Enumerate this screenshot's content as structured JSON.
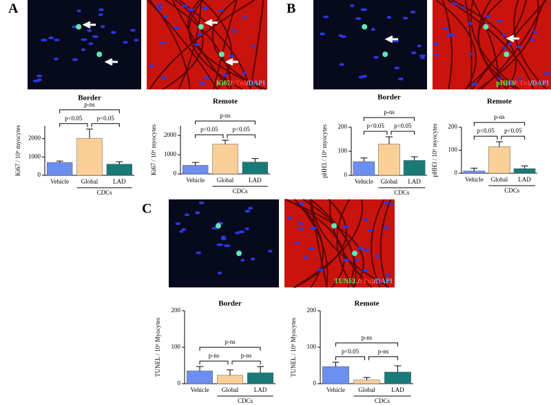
{
  "panel_labels": [
    "A",
    "B",
    "C"
  ],
  "image_labels": [
    [
      "Ki67",
      "/",
      "cTnI",
      "/",
      "DAPI"
    ],
    [
      "pHH3",
      "/",
      "cTnI",
      "/",
      "DAPI"
    ],
    [
      "TUNEL",
      "/",
      "cTnI",
      "/",
      "DAPI"
    ]
  ],
  "chart_data": [
    {
      "type": "bar",
      "title": "Border",
      "y_label": "Ki67 / 10⁶ myocytes",
      "categories": [
        "Vehicle",
        "Global",
        "LAD"
      ],
      "group_label": "CDCs",
      "values": [
        700,
        2020,
        610
      ],
      "errors": [
        80,
        500,
        130
      ],
      "colors": [
        "#6b8ff0",
        "#fbcf98",
        "#1a7a78"
      ],
      "ylim": [
        0,
        2700
      ],
      "yticks": [
        0,
        1000,
        2000
      ],
      "comparisons": [
        "p<0.05",
        "p<0.05",
        "p-ns"
      ]
    },
    {
      "type": "bar",
      "title": "Remote",
      "y_label": "Ki67 / 10⁶ myocytes",
      "categories": [
        "Vehicle",
        "Global",
        "LAD"
      ],
      "group_label": "CDCs",
      "values": [
        450,
        1550,
        620
      ],
      "errors": [
        150,
        200,
        180
      ],
      "colors": [
        "#6b8ff0",
        "#fbcf98",
        "#1a7a78"
      ],
      "ylim": [
        0,
        2500
      ],
      "yticks": [
        0,
        1000,
        2000
      ],
      "comparisons": [
        "p<0.05",
        "p<0.05",
        "p-ns"
      ]
    },
    {
      "type": "bar",
      "title": "Border",
      "y_label": "pHH3 / 10⁶ myocytes",
      "categories": [
        "Vehicle",
        "Global",
        "LAD"
      ],
      "group_label": "CDCs",
      "values": [
        57,
        130,
        62
      ],
      "errors": [
        15,
        30,
        15
      ],
      "colors": [
        "#6b8ff0",
        "#fbcf98",
        "#1a7a78"
      ],
      "ylim": [
        0,
        200
      ],
      "yticks": [
        0,
        100,
        200
      ],
      "comparisons": [
        "p<0.05",
        "p<0.05",
        "p-ns"
      ]
    },
    {
      "type": "bar",
      "title": "Remote",
      "y_label": "pHH3 / 10⁶ myocytes",
      "categories": [
        "Vehicle",
        "Global",
        "LAD"
      ],
      "group_label": "CDCs",
      "values": [
        10,
        115,
        20
      ],
      "errors": [
        12,
        22,
        12
      ],
      "colors": [
        "#6b8ff0",
        "#fbcf98",
        "#1a7a78"
      ],
      "ylim": [
        0,
        200
      ],
      "yticks": [
        0,
        100,
        200
      ],
      "comparisons": [
        "p<0.05",
        "p<0.05",
        "p-ns"
      ]
    },
    {
      "type": "bar",
      "title": "Border",
      "y_label": "TUNEL / 10⁶ Myocytes",
      "categories": [
        "Vehicle",
        "Global",
        "LAD"
      ],
      "group_label": "CDCs",
      "values": [
        35,
        23,
        30
      ],
      "errors": [
        12,
        15,
        17
      ],
      "colors": [
        "#6b8ff0",
        "#fbcf98",
        "#1a7a78"
      ],
      "ylim": [
        0,
        200
      ],
      "yticks": [
        0,
        100,
        200
      ],
      "comparisons": [
        "p-ns",
        "p-ns",
        "p-ns"
      ]
    },
    {
      "type": "bar",
      "title": "Remote",
      "y_label": "TUNEL / 10⁶ Myocytes",
      "categories": [
        "Vehicle",
        "Global",
        "LAD"
      ],
      "group_label": "CDCs",
      "values": [
        47,
        10,
        32
      ],
      "errors": [
        12,
        7,
        17
      ],
      "colors": [
        "#6b8ff0",
        "#fbcf98",
        "#1a7a78"
      ],
      "ylim": [
        0,
        200
      ],
      "yticks": [
        0,
        100,
        200
      ],
      "comparisons": [
        "p<0.05",
        "p-ns",
        "p-ns"
      ]
    }
  ]
}
